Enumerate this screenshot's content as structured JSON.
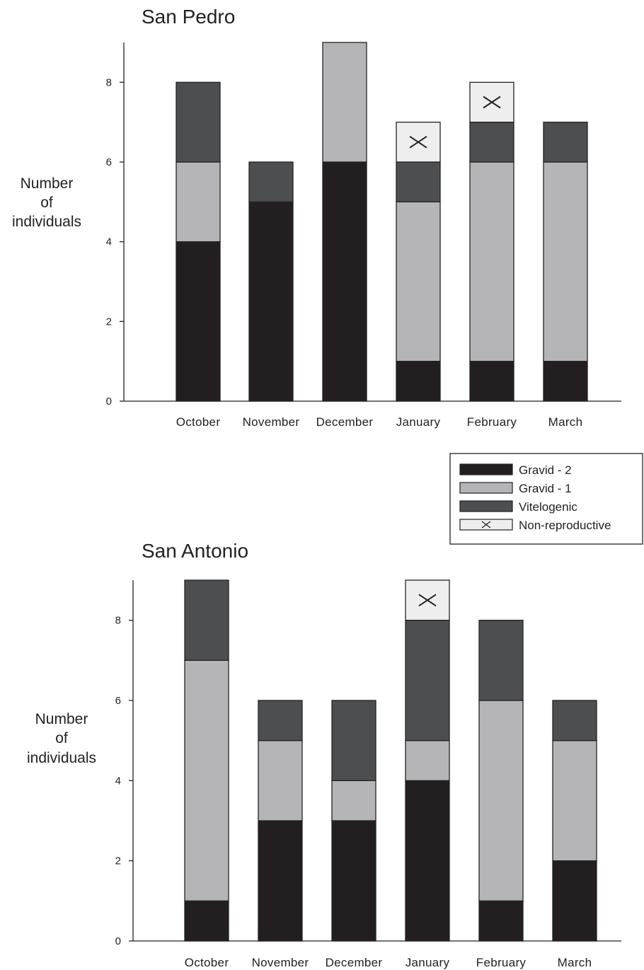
{
  "chart_data": [
    {
      "type": "bar",
      "stacked": true,
      "title": "San Pedro",
      "ylabel": [
        "Number",
        "of",
        "individuals"
      ],
      "categories": [
        "October",
        "November",
        "December",
        "January",
        "February",
        "March"
      ],
      "yticks": [
        "0",
        "2",
        "4",
        "6",
        "8"
      ],
      "ylim": [
        0,
        9
      ],
      "series": [
        {
          "name": "Gravid - 2",
          "values": [
            4,
            5,
            6,
            1,
            1,
            1
          ]
        },
        {
          "name": "Gravid - 1",
          "values": [
            2,
            0,
            3,
            4,
            5,
            5
          ]
        },
        {
          "name": "Vitelogenic",
          "values": [
            2,
            1,
            0,
            1,
            1,
            1
          ]
        },
        {
          "name": "Non-reproductive",
          "values": [
            0,
            0,
            0,
            1,
            1,
            0
          ]
        }
      ]
    },
    {
      "type": "bar",
      "stacked": true,
      "title": "San Antonio",
      "ylabel": [
        "Number",
        "of",
        "individuals"
      ],
      "categories": [
        "October",
        "November",
        "December",
        "January",
        "February",
        "March"
      ],
      "yticks": [
        "0",
        "2",
        "4",
        "6",
        "8"
      ],
      "ylim": [
        0,
        9
      ],
      "series": [
        {
          "name": "Gravid - 2",
          "values": [
            1,
            3,
            3,
            4,
            1,
            2
          ]
        },
        {
          "name": "Gravid - 1",
          "values": [
            6,
            2,
            1,
            1,
            5,
            3
          ]
        },
        {
          "name": "Vitelogenic",
          "values": [
            2,
            1,
            2,
            3,
            2,
            1
          ]
        },
        {
          "name": "Non-reproductive",
          "values": [
            0,
            0,
            0,
            1,
            0,
            0
          ]
        }
      ]
    }
  ],
  "legend": {
    "placement": "right, between charts",
    "items": [
      {
        "label": "Gravid - 2",
        "color": "#231f20",
        "icon": "solid"
      },
      {
        "label": "Gravid - 1",
        "color": "#b5b5b8",
        "icon": "solid"
      },
      {
        "label": "Vitelogenic",
        "color": "#4d4e50",
        "icon": "solid"
      },
      {
        "label": "Non-reproductive",
        "color": "#eeeeee",
        "icon": "cross-mark"
      }
    ]
  }
}
